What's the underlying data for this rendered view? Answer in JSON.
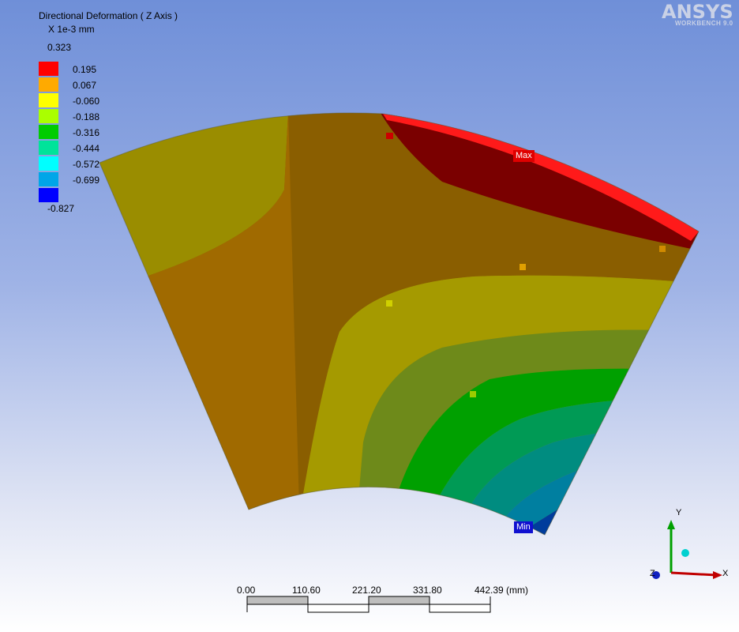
{
  "result": {
    "title": "Directional Deformation ( Z Axis )",
    "units": "X 1e-3 mm"
  },
  "legend": {
    "max_label": "0.323",
    "min_label": "-0.827",
    "bands": [
      {
        "color": "#ff0000",
        "upper": "0.195"
      },
      {
        "color": "#ffaa00",
        "upper": "0.067"
      },
      {
        "color": "#ffff00",
        "upper": "-0.060"
      },
      {
        "color": "#aaff00",
        "upper": "-0.188"
      },
      {
        "color": "#00cc00",
        "upper": "-0.316"
      },
      {
        "color": "#00e39a",
        "upper": "-0.444"
      },
      {
        "color": "#00ffff",
        "upper": "-0.572"
      },
      {
        "color": "#00a6e8",
        "upper": "-0.699"
      },
      {
        "color": "#0000ff",
        "upper": ""
      }
    ]
  },
  "logo": {
    "name": "ANSYS",
    "product": "WORKBENCH 9.0"
  },
  "probes": {
    "max_label": "Max",
    "min_label": "Min"
  },
  "scale": {
    "ticks": [
      "0.00",
      "110.60",
      "221.20",
      "331.80",
      "442.39 (mm)"
    ]
  },
  "triad": {
    "x_label": "X",
    "y_label": "Y",
    "z_label": "Z"
  }
}
